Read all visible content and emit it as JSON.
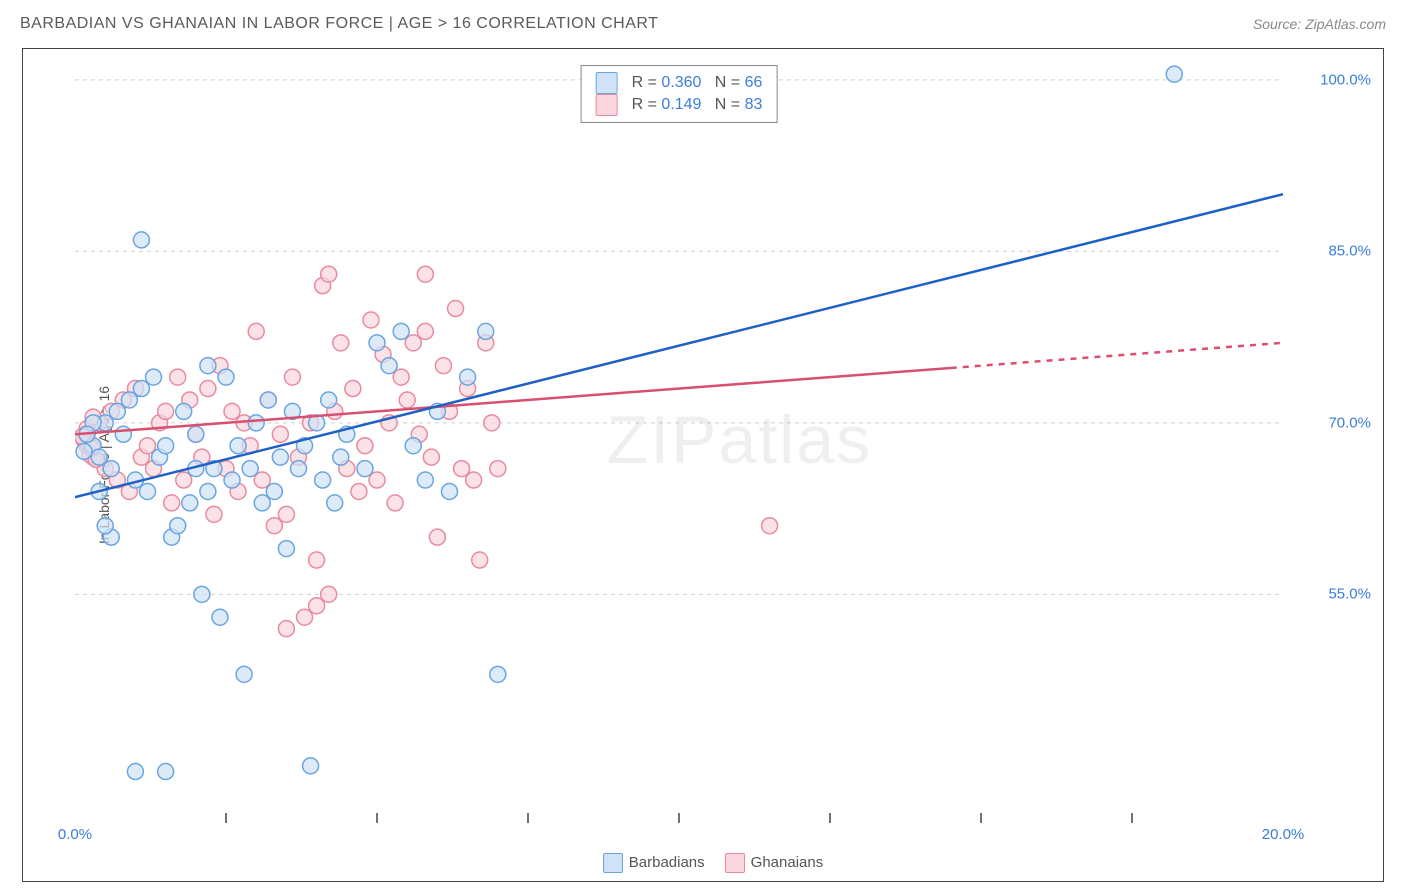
{
  "header": {
    "title": "BARBADIAN VS GHANAIAN IN LABOR FORCE | AGE > 16 CORRELATION CHART",
    "source_prefix": "Source: ",
    "source_name": "ZipAtlas.com"
  },
  "ylabel": "In Labor Force | Age > 16",
  "watermark": {
    "zip": "ZIP",
    "atlas": "atlas"
  },
  "chart": {
    "type": "scatter",
    "background_color": "#ffffff",
    "grid_color": "#d0d0d0",
    "axis_color": "#444444",
    "xlim": [
      0,
      20
    ],
    "ylim": [
      35,
      102
    ],
    "y_ticks": [
      {
        "value": 100,
        "label": "100.0%"
      },
      {
        "value": 85,
        "label": "85.0%"
      },
      {
        "value": 70,
        "label": "70.0%"
      },
      {
        "value": 55,
        "label": "55.0%"
      }
    ],
    "x_ticks": [
      {
        "value": 0,
        "label": "0.0%"
      },
      {
        "value": 20,
        "label": "20.0%"
      }
    ],
    "x_minor_ticks": [
      2.5,
      5,
      7.5,
      10,
      12.5,
      15,
      17.5
    ],
    "tick_label_color": "#3b7dd8",
    "marker_radius": 8,
    "marker_stroke_width": 1.5,
    "trend_line_width": 2.5,
    "series": {
      "A": {
        "label": "Barbadians",
        "fill": "#cfe2f7",
        "stroke": "#6aa5e0",
        "line_color": "#1f60c4",
        "trend": {
          "x1": 0,
          "y1": 63.5,
          "x2": 20,
          "y2": 90,
          "dash_from_x": 20
        },
        "R": "0.360",
        "N": "66",
        "points": [
          [
            18.2,
            100.5
          ],
          [
            1.1,
            86
          ],
          [
            0.3,
            68
          ],
          [
            0.4,
            67
          ],
          [
            0.5,
            70
          ],
          [
            0.6,
            66
          ],
          [
            0.7,
            71
          ],
          [
            0.8,
            69
          ],
          [
            0.9,
            72
          ],
          [
            1.0,
            65
          ],
          [
            1.1,
            73
          ],
          [
            1.2,
            64
          ],
          [
            1.3,
            74
          ],
          [
            1.4,
            67
          ],
          [
            1.5,
            68
          ],
          [
            1.6,
            60
          ],
          [
            1.7,
            61
          ],
          [
            1.8,
            71
          ],
          [
            1.9,
            63
          ],
          [
            2.0,
            69
          ],
          [
            2.1,
            55
          ],
          [
            2.2,
            75
          ],
          [
            2.3,
            66
          ],
          [
            2.4,
            53
          ],
          [
            2.5,
            74
          ],
          [
            2.6,
            65
          ],
          [
            2.7,
            68
          ],
          [
            2.8,
            48
          ],
          [
            2.9,
            66
          ],
          [
            3.0,
            70
          ],
          [
            3.1,
            63
          ],
          [
            3.2,
            72
          ],
          [
            3.3,
            64
          ],
          [
            3.4,
            67
          ],
          [
            3.5,
            59
          ],
          [
            3.6,
            71
          ],
          [
            3.7,
            66
          ],
          [
            3.8,
            68
          ],
          [
            3.9,
            40
          ],
          [
            4.0,
            70
          ],
          [
            4.1,
            65
          ],
          [
            4.2,
            72
          ],
          [
            4.3,
            63
          ],
          [
            4.4,
            67
          ],
          [
            4.5,
            69
          ],
          [
            4.8,
            66
          ],
          [
            5.0,
            77
          ],
          [
            5.2,
            75
          ],
          [
            5.4,
            78
          ],
          [
            5.6,
            68
          ],
          [
            5.8,
            65
          ],
          [
            6.0,
            71
          ],
          [
            6.2,
            64
          ],
          [
            6.5,
            74
          ],
          [
            6.8,
            78
          ],
          [
            7.0,
            48
          ],
          [
            1.0,
            39.5
          ],
          [
            0.6,
            60
          ],
          [
            0.4,
            64
          ],
          [
            0.5,
            61
          ],
          [
            2.0,
            66
          ],
          [
            2.2,
            64
          ],
          [
            1.5,
            39.5
          ],
          [
            0.3,
            70
          ],
          [
            0.2,
            69
          ],
          [
            0.15,
            67.5
          ]
        ]
      },
      "B": {
        "label": "Ghanaians",
        "fill": "#f9d6dd",
        "stroke": "#e88aa0",
        "line_color": "#d94f70",
        "trend": {
          "x1": 0,
          "y1": 69,
          "x2": 20,
          "y2": 77,
          "dash_from_x": 14.5
        },
        "R": "0.149",
        "N": "83",
        "points": [
          [
            0.2,
            68
          ],
          [
            0.3,
            67
          ],
          [
            0.4,
            70
          ],
          [
            0.5,
            66
          ],
          [
            0.6,
            71
          ],
          [
            0.7,
            65
          ],
          [
            0.8,
            72
          ],
          [
            0.9,
            64
          ],
          [
            1.0,
            73
          ],
          [
            1.1,
            67
          ],
          [
            1.2,
            68
          ],
          [
            1.3,
            66
          ],
          [
            1.4,
            70
          ],
          [
            1.5,
            71
          ],
          [
            1.6,
            63
          ],
          [
            1.7,
            74
          ],
          [
            1.8,
            65
          ],
          [
            1.9,
            72
          ],
          [
            2.0,
            69
          ],
          [
            2.1,
            67
          ],
          [
            2.2,
            73
          ],
          [
            2.3,
            62
          ],
          [
            2.4,
            75
          ],
          [
            2.5,
            66
          ],
          [
            2.6,
            71
          ],
          [
            2.7,
            64
          ],
          [
            2.8,
            70
          ],
          [
            2.9,
            68
          ],
          [
            3.0,
            78
          ],
          [
            3.1,
            65
          ],
          [
            3.2,
            72
          ],
          [
            3.3,
            61
          ],
          [
            3.4,
            69
          ],
          [
            3.5,
            62
          ],
          [
            3.6,
            74
          ],
          [
            3.7,
            67
          ],
          [
            3.8,
            53
          ],
          [
            3.9,
            70
          ],
          [
            4.0,
            58
          ],
          [
            4.1,
            82
          ],
          [
            4.2,
            55
          ],
          [
            4.3,
            71
          ],
          [
            4.4,
            77
          ],
          [
            4.5,
            66
          ],
          [
            4.6,
            73
          ],
          [
            4.7,
            64
          ],
          [
            4.8,
            68
          ],
          [
            4.9,
            79
          ],
          [
            5.0,
            65
          ],
          [
            5.1,
            76
          ],
          [
            5.2,
            70
          ],
          [
            5.3,
            63
          ],
          [
            5.4,
            74
          ],
          [
            5.5,
            72
          ],
          [
            5.6,
            77
          ],
          [
            5.7,
            69
          ],
          [
            5.8,
            78
          ],
          [
            5.9,
            67
          ],
          [
            6.0,
            60
          ],
          [
            6.1,
            75
          ],
          [
            6.2,
            71
          ],
          [
            6.3,
            80
          ],
          [
            6.4,
            66
          ],
          [
            6.5,
            73
          ],
          [
            6.6,
            65
          ],
          [
            6.7,
            58
          ],
          [
            6.8,
            77
          ],
          [
            6.9,
            70
          ],
          [
            7.0,
            66
          ],
          [
            4.2,
            83
          ],
          [
            5.8,
            83
          ],
          [
            3.5,
            52
          ],
          [
            4.0,
            54
          ],
          [
            11.5,
            61
          ],
          [
            0.15,
            68.5
          ],
          [
            0.2,
            69.5
          ],
          [
            0.25,
            67.2
          ],
          [
            0.3,
            70.5
          ],
          [
            0.35,
            66.8
          ],
          [
            0.18,
            69
          ],
          [
            0.22,
            68.2
          ],
          [
            0.28,
            67.8
          ],
          [
            0.12,
            68.8
          ]
        ]
      }
    }
  },
  "stat_legend": {
    "r_label": "R =",
    "n_label": "N ="
  },
  "bottom_legend": {
    "series": [
      "A",
      "B"
    ]
  }
}
